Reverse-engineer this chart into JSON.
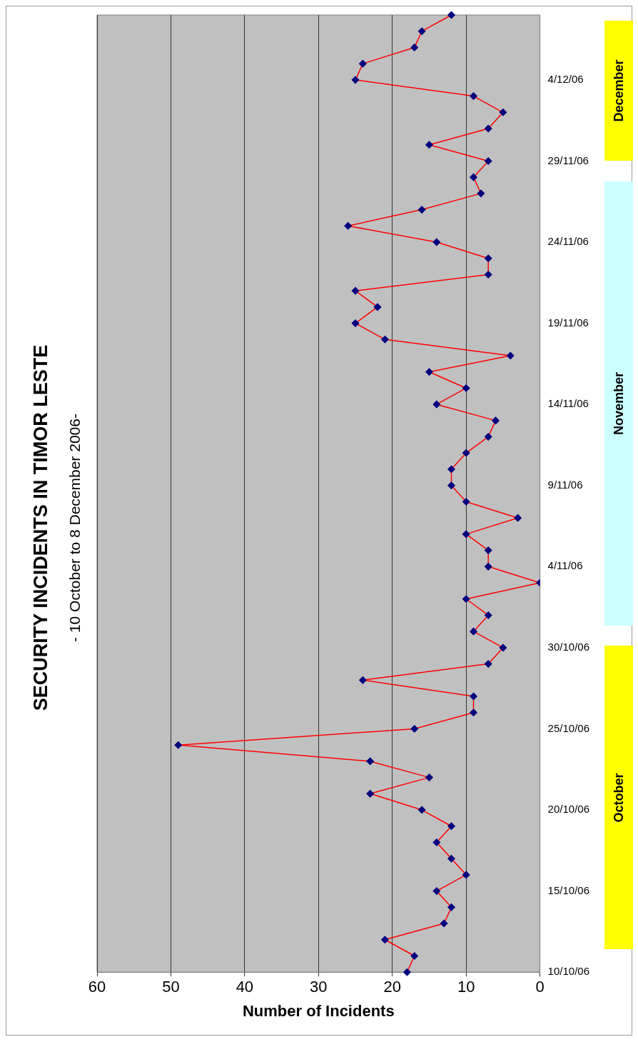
{
  "chart_data": {
    "type": "line",
    "title": "SECURITY INCIDENTS IN TIMOR LESTE",
    "subtitle": "- 10 October to 8 December 2006-",
    "xlabel": "Number of Incidents",
    "orientation": "horizontal",
    "categories": [
      null,
      null,
      null,
      null,
      "4/12/06",
      null,
      null,
      null,
      null,
      "29/11/06",
      null,
      null,
      null,
      null,
      "24/11/06",
      null,
      null,
      null,
      null,
      "19/11/06",
      null,
      null,
      null,
      null,
      "14/11/06",
      null,
      null,
      null,
      null,
      "9/11/06",
      null,
      null,
      null,
      null,
      "4/11/06",
      null,
      null,
      null,
      null,
      "30/10/06",
      null,
      null,
      null,
      null,
      "25/10/06",
      null,
      null,
      null,
      null,
      "20/10/06",
      null,
      null,
      null,
      null,
      "15/10/06",
      null,
      null,
      null,
      null,
      "10/10/06"
    ],
    "series": [
      {
        "color": "#ff0000",
        "values": [
          12,
          16,
          17,
          24,
          25,
          9,
          5,
          7,
          15,
          7,
          9,
          8,
          16,
          26,
          14,
          7,
          7,
          25,
          22,
          25,
          21,
          4,
          15,
          10,
          14,
          6,
          7,
          10,
          12,
          12,
          10,
          3,
          10,
          7,
          7,
          0,
          10,
          7,
          9,
          5,
          7,
          24,
          9,
          9,
          17,
          49,
          23,
          15,
          23,
          16,
          12,
          14,
          12,
          10,
          14,
          12,
          13,
          21,
          17,
          18
        ]
      }
    ],
    "xlim": [
      60,
      0
    ],
    "xticks": [
      0,
      10,
      20,
      30,
      40,
      50,
      60
    ],
    "grid": "x",
    "marker": "diamond",
    "line_style": "solid",
    "legend": false,
    "annotations": [
      "October",
      "November",
      "December"
    ]
  }
}
